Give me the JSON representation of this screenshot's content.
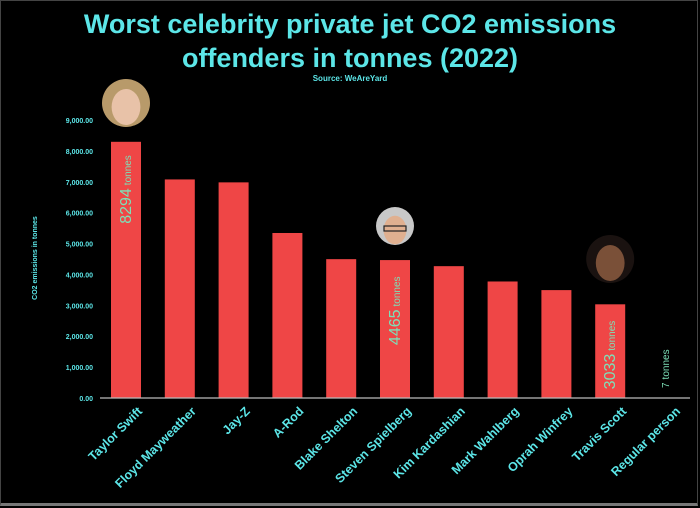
{
  "chart_data": {
    "type": "bar",
    "title_lines": [
      "Worst celebrity private jet CO2 emissions",
      "offenders in tonnes (2022)"
    ],
    "subtitle": "Source: WeAreYard",
    "ylabel": "CO2 emissions in tonnes",
    "xlabel": "",
    "ylim": [
      0,
      9000
    ],
    "yticks": [
      "0.00",
      "1,000.00",
      "2,000.00",
      "3,000.00",
      "4,000.00",
      "5,000.00",
      "6,000.00",
      "7,000.00",
      "8,000.00",
      "9,000.00"
    ],
    "categories": [
      "Taylor Swift",
      "Floyd Mayweather",
      "Jay-Z",
      "A-Rod",
      "Blake Shelton",
      "Steven Spielberg",
      "Kim Kardashian",
      "Mark Wahlberg",
      "Oprah Winfrey",
      "Travis Scott",
      "Regular person"
    ],
    "values": [
      8294,
      7076,
      6981,
      5342,
      4495,
      4465,
      4268,
      3772,
      3493,
      3033,
      7
    ],
    "data_labels": [
      {
        "index": 0,
        "number": "8294",
        "unit": "tonnes"
      },
      {
        "index": 5,
        "number": "4465",
        "unit": "tonnes"
      },
      {
        "index": 9,
        "number": "3033",
        "unit": "tonnes"
      },
      {
        "index": 10,
        "number": "7",
        "unit": "tonnes"
      }
    ],
    "photos": [
      {
        "index": 0,
        "subject": "Taylor Swift"
      },
      {
        "index": 5,
        "subject": "Steven Spielberg"
      },
      {
        "index": 9,
        "subject": "Travis Scott"
      }
    ],
    "grid": false,
    "colors": {
      "bar": "#ef4646",
      "text": "#5ce6e8",
      "data_label": "#7de0b8",
      "background": "#000000",
      "axis": "#bbbbbb"
    }
  }
}
